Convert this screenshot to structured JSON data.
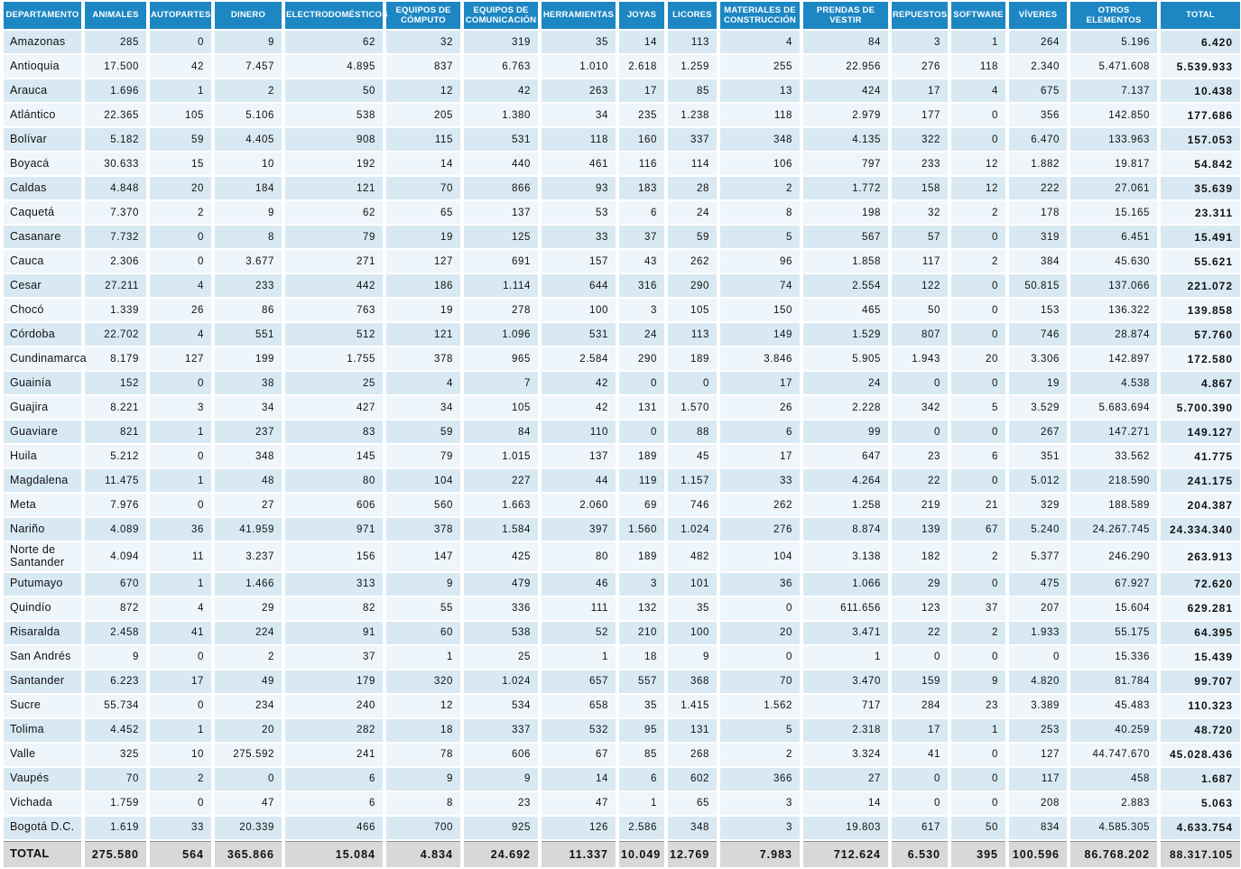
{
  "colors": {
    "header_bg": "#1d87c3",
    "row_odd": "#d9e9f4",
    "row_even": "#eef5fb",
    "total_row_bg": "#d8d8d8",
    "header_text": "#ffffff"
  },
  "columns": [
    "DEPARTAMENTO",
    "ANIMALES",
    "AUTOPARTES",
    "DINERO",
    "ELECTRODOMÉSTICOS",
    "EQUIPOS DE CÓMPUTO",
    "EQUIPOS DE COMUNICACIÓN",
    "HERRAMIENTAS",
    "JOYAS",
    "LICORES",
    "MATERIALES DE CONSTRUCCIÓN",
    "PRENDAS DE VESTIR",
    "REPUESTOS",
    "SOFTWARE",
    "VÍVERES",
    "OTROS ELEMENTOS",
    "TOTAL"
  ],
  "rows": [
    {
      "name": "Amazonas",
      "values": [
        "285",
        "0",
        "9",
        "62",
        "32",
        "319",
        "35",
        "14",
        "113",
        "4",
        "84",
        "3",
        "1",
        "264",
        "5.196",
        "6.420"
      ]
    },
    {
      "name": "Antioquia",
      "values": [
        "17.500",
        "42",
        "7.457",
        "4.895",
        "837",
        "6.763",
        "1.010",
        "2.618",
        "1.259",
        "255",
        "22.956",
        "276",
        "118",
        "2.340",
        "5.471.608",
        "5.539.933"
      ]
    },
    {
      "name": "Arauca",
      "values": [
        "1.696",
        "1",
        "2",
        "50",
        "12",
        "42",
        "263",
        "17",
        "85",
        "13",
        "424",
        "17",
        "4",
        "675",
        "7.137",
        "10.438"
      ]
    },
    {
      "name": "Atlántico",
      "values": [
        "22.365",
        "105",
        "5.106",
        "538",
        "205",
        "1.380",
        "34",
        "235",
        "1.238",
        "118",
        "2.979",
        "177",
        "0",
        "356",
        "142.850",
        "177.686"
      ]
    },
    {
      "name": "Bolívar",
      "values": [
        "5.182",
        "59",
        "4.405",
        "908",
        "115",
        "531",
        "118",
        "160",
        "337",
        "348",
        "4.135",
        "322",
        "0",
        "6.470",
        "133.963",
        "157.053"
      ]
    },
    {
      "name": "Boyacá",
      "values": [
        "30.633",
        "15",
        "10",
        "192",
        "14",
        "440",
        "461",
        "116",
        "114",
        "106",
        "797",
        "233",
        "12",
        "1.882",
        "19.817",
        "54.842"
      ]
    },
    {
      "name": "Caldas",
      "values": [
        "4.848",
        "20",
        "184",
        "121",
        "70",
        "866",
        "93",
        "183",
        "28",
        "2",
        "1.772",
        "158",
        "12",
        "222",
        "27.061",
        "35.639"
      ]
    },
    {
      "name": "Caquetá",
      "values": [
        "7.370",
        "2",
        "9",
        "62",
        "65",
        "137",
        "53",
        "6",
        "24",
        "8",
        "198",
        "32",
        "2",
        "178",
        "15.165",
        "23.311"
      ]
    },
    {
      "name": "Casanare",
      "values": [
        "7.732",
        "0",
        "8",
        "79",
        "19",
        "125",
        "33",
        "37",
        "59",
        "5",
        "567",
        "57",
        "0",
        "319",
        "6.451",
        "15.491"
      ]
    },
    {
      "name": "Cauca",
      "values": [
        "2.306",
        "0",
        "3.677",
        "271",
        "127",
        "691",
        "157",
        "43",
        "262",
        "96",
        "1.858",
        "117",
        "2",
        "384",
        "45.630",
        "55.621"
      ]
    },
    {
      "name": "Cesar",
      "values": [
        "27.211",
        "4",
        "233",
        "442",
        "186",
        "1.114",
        "644",
        "316",
        "290",
        "74",
        "2.554",
        "122",
        "0",
        "50.815",
        "137.066",
        "221.072"
      ]
    },
    {
      "name": "Chocó",
      "values": [
        "1.339",
        "26",
        "86",
        "763",
        "19",
        "278",
        "100",
        "3",
        "105",
        "150",
        "465",
        "50",
        "0",
        "153",
        "136.322",
        "139.858"
      ]
    },
    {
      "name": "Córdoba",
      "values": [
        "22.702",
        "4",
        "551",
        "512",
        "121",
        "1.096",
        "531",
        "24",
        "113",
        "149",
        "1.529",
        "807",
        "0",
        "746",
        "28.874",
        "57.760"
      ]
    },
    {
      "name": "Cundinamarca",
      "values": [
        "8.179",
        "127",
        "199",
        "1.755",
        "378",
        "965",
        "2.584",
        "290",
        "189",
        "3.846",
        "5.905",
        "1.943",
        "20",
        "3.306",
        "142.897",
        "172.580"
      ]
    },
    {
      "name": "Guainía",
      "values": [
        "152",
        "0",
        "38",
        "25",
        "4",
        "7",
        "42",
        "0",
        "0",
        "17",
        "24",
        "0",
        "0",
        "19",
        "4.538",
        "4.867"
      ]
    },
    {
      "name": "Guajira",
      "values": [
        "8.221",
        "3",
        "34",
        "427",
        "34",
        "105",
        "42",
        "131",
        "1.570",
        "26",
        "2.228",
        "342",
        "5",
        "3.529",
        "5.683.694",
        "5.700.390"
      ]
    },
    {
      "name": "Guaviare",
      "values": [
        "821",
        "1",
        "237",
        "83",
        "59",
        "84",
        "110",
        "0",
        "88",
        "6",
        "99",
        "0",
        "0",
        "267",
        "147.271",
        "149.127"
      ]
    },
    {
      "name": "Huila",
      "values": [
        "5.212",
        "0",
        "348",
        "145",
        "79",
        "1.015",
        "137",
        "189",
        "45",
        "17",
        "647",
        "23",
        "6",
        "351",
        "33.562",
        "41.775"
      ]
    },
    {
      "name": "Magdalena",
      "values": [
        "11.475",
        "1",
        "48",
        "80",
        "104",
        "227",
        "44",
        "119",
        "1.157",
        "33",
        "4.264",
        "22",
        "0",
        "5.012",
        "218.590",
        "241.175"
      ]
    },
    {
      "name": "Meta",
      "values": [
        "7.976",
        "0",
        "27",
        "606",
        "560",
        "1.663",
        "2.060",
        "69",
        "746",
        "262",
        "1.258",
        "219",
        "21",
        "329",
        "188.589",
        "204.387"
      ]
    },
    {
      "name": "Nariño",
      "values": [
        "4.089",
        "36",
        "41.959",
        "971",
        "378",
        "1.584",
        "397",
        "1.560",
        "1.024",
        "276",
        "8.874",
        "139",
        "67",
        "5.240",
        "24.267.745",
        "24.334.340"
      ]
    },
    {
      "name": "Norte de Santander",
      "values": [
        "4.094",
        "11",
        "3.237",
        "156",
        "147",
        "425",
        "80",
        "189",
        "482",
        "104",
        "3.138",
        "182",
        "2",
        "5.377",
        "246.290",
        "263.913"
      ]
    },
    {
      "name": "Putumayo",
      "values": [
        "670",
        "1",
        "1.466",
        "313",
        "9",
        "479",
        "46",
        "3",
        "101",
        "36",
        "1.066",
        "29",
        "0",
        "475",
        "67.927",
        "72.620"
      ]
    },
    {
      "name": "Quindío",
      "values": [
        "872",
        "4",
        "29",
        "82",
        "55",
        "336",
        "111",
        "132",
        "35",
        "0",
        "611.656",
        "123",
        "37",
        "207",
        "15.604",
        "629.281"
      ]
    },
    {
      "name": "Risaralda",
      "values": [
        "2.458",
        "41",
        "224",
        "91",
        "60",
        "538",
        "52",
        "210",
        "100",
        "20",
        "3.471",
        "22",
        "2",
        "1.933",
        "55.175",
        "64.395"
      ]
    },
    {
      "name": "San Andrés",
      "values": [
        "9",
        "0",
        "2",
        "37",
        "1",
        "25",
        "1",
        "18",
        "9",
        "0",
        "1",
        "0",
        "0",
        "0",
        "15.336",
        "15.439"
      ]
    },
    {
      "name": "Santander",
      "values": [
        "6.223",
        "17",
        "49",
        "179",
        "320",
        "1.024",
        "657",
        "557",
        "368",
        "70",
        "3.470",
        "159",
        "9",
        "4.820",
        "81.784",
        "99.707"
      ]
    },
    {
      "name": "Sucre",
      "values": [
        "55.734",
        "0",
        "234",
        "240",
        "12",
        "534",
        "658",
        "35",
        "1.415",
        "1.562",
        "717",
        "284",
        "23",
        "3.389",
        "45.483",
        "110.323"
      ]
    },
    {
      "name": "Tolima",
      "values": [
        "4.452",
        "1",
        "20",
        "282",
        "18",
        "337",
        "532",
        "95",
        "131",
        "5",
        "2.318",
        "17",
        "1",
        "253",
        "40.259",
        "48.720"
      ]
    },
    {
      "name": "Valle",
      "values": [
        "325",
        "10",
        "275.592",
        "241",
        "78",
        "606",
        "67",
        "85",
        "268",
        "2",
        "3.324",
        "41",
        "0",
        "127",
        "44.747.670",
        "45.028.436"
      ]
    },
    {
      "name": "Vaupés",
      "values": [
        "70",
        "2",
        "0",
        "6",
        "9",
        "9",
        "14",
        "6",
        "602",
        "366",
        "27",
        "0",
        "0",
        "117",
        "458",
        "1.687"
      ]
    },
    {
      "name": "Vichada",
      "values": [
        "1.759",
        "0",
        "47",
        "6",
        "8",
        "23",
        "47",
        "1",
        "65",
        "3",
        "14",
        "0",
        "0",
        "208",
        "2.883",
        "5.063"
      ]
    },
    {
      "name": "Bogotá D.C.",
      "values": [
        "1.619",
        "33",
        "20.339",
        "466",
        "700",
        "925",
        "126",
        "2.586",
        "348",
        "3",
        "19.803",
        "617",
        "50",
        "834",
        "4.585.305",
        "4.633.754"
      ]
    }
  ],
  "total_row": {
    "label": "TOTAL",
    "values": [
      "275.580",
      "564",
      "365.866",
      "15.084",
      "4.834",
      "24.692",
      "11.337",
      "10.049",
      "12.769",
      "7.983",
      "712.624",
      "6.530",
      "395",
      "100.596",
      "86.768.202",
      "88.317.105"
    ]
  }
}
